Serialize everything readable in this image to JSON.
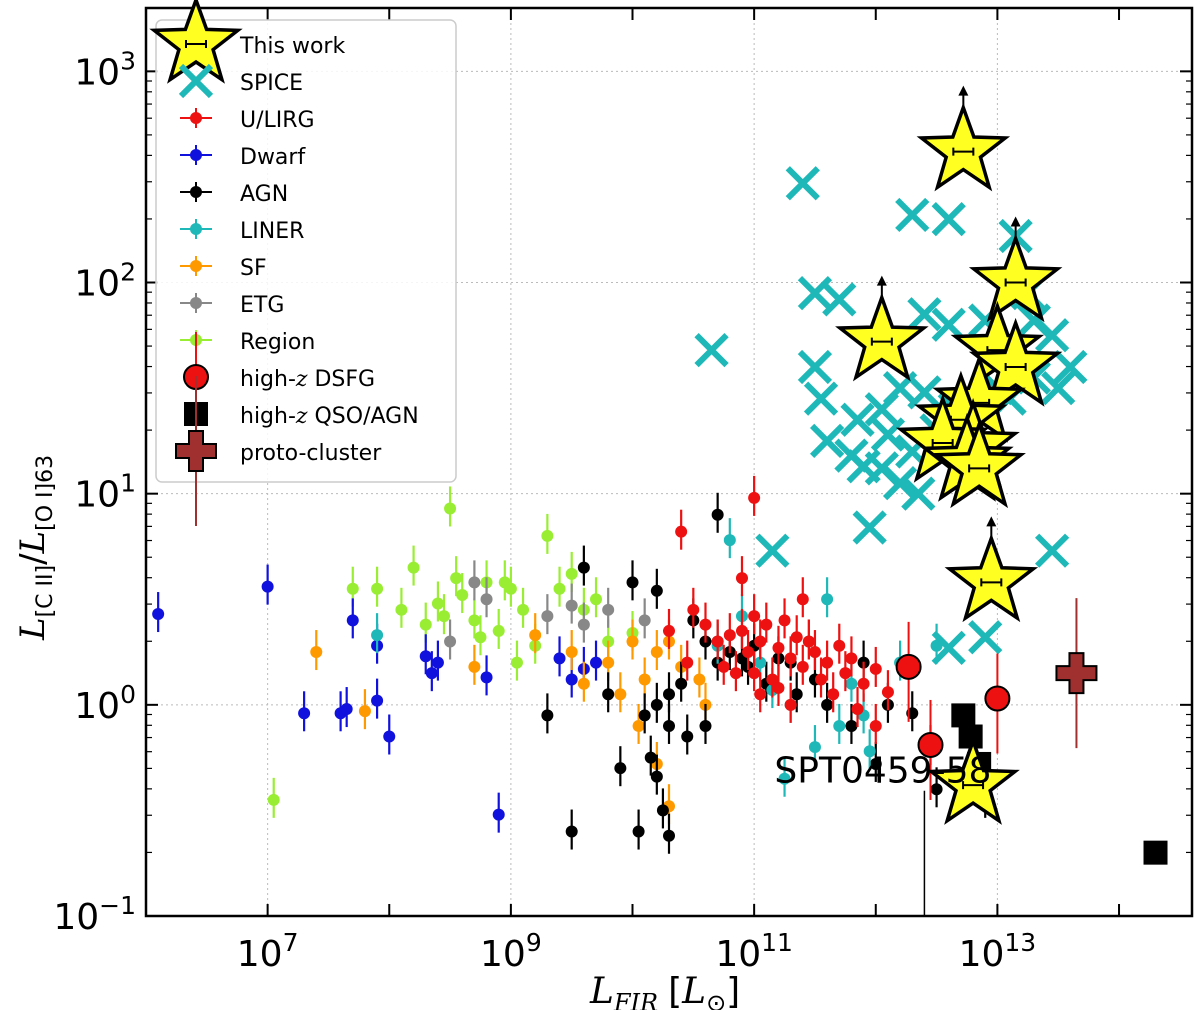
{
  "chart_data": {
    "type": "scatter",
    "title": "",
    "xlabel": "L_FIR [L_⊙]",
    "ylabel": "L_[C II]/L_[O I]63",
    "xlabel_parts": {
      "main": "L",
      "sub": "FIR",
      "unit_main": "L",
      "unit_sub": "⊙"
    },
    "ylabel_parts": {
      "num": "L",
      "num_sub": "[C II]",
      "den": "L",
      "den_sub": "[O I]63"
    },
    "x_scale": "log",
    "y_scale": "log",
    "xlim_log10": [
      6.0,
      14.6
    ],
    "ylim_log10": [
      -1.0,
      3.3
    ],
    "x_ticks": [
      {
        "log": 7,
        "base": "10",
        "exp": "7"
      },
      {
        "log": 9,
        "base": "10",
        "exp": "9"
      },
      {
        "log": 11,
        "base": "10",
        "exp": "11"
      },
      {
        "log": 13,
        "base": "10",
        "exp": "13"
      }
    ],
    "y_ticks": [
      {
        "log": -1,
        "base": "10",
        "exp": "−1"
      },
      {
        "log": 0,
        "base": "10",
        "exp": "0"
      },
      {
        "log": 1,
        "base": "10",
        "exp": "1"
      },
      {
        "log": 2,
        "base": "10",
        "exp": "2"
      },
      {
        "log": 3,
        "base": "10",
        "exp": "3"
      }
    ],
    "grid": true,
    "legend_position": "top-left",
    "annotation": {
      "text": "SPT0459-58",
      "x_log10": 12.4,
      "y_log10": -0.35,
      "line_bottom_log10": -1.0
    },
    "series": [
      {
        "name": "This work",
        "marker": "star",
        "color": "#ffff22",
        "edge": "#000000",
        "points": [
          {
            "x": 12.72,
            "y": 2.62,
            "lower_limit": true
          },
          {
            "x": 13.15,
            "y": 2.0,
            "lower_limit": true
          },
          {
            "x": 12.05,
            "y": 1.72,
            "lower_limit": true
          },
          {
            "x": 13.0,
            "y": 1.68
          },
          {
            "x": 13.15,
            "y": 1.6
          },
          {
            "x": 12.85,
            "y": 1.43
          },
          {
            "x": 12.7,
            "y": 1.35
          },
          {
            "x": 12.8,
            "y": 1.22
          },
          {
            "x": 12.55,
            "y": 1.24
          },
          {
            "x": 12.75,
            "y": 1.15
          },
          {
            "x": 12.85,
            "y": 1.12
          },
          {
            "x": 12.95,
            "y": 0.58,
            "lower_limit": true
          },
          {
            "x": 12.8,
            "y": -0.38
          }
        ]
      },
      {
        "name": "SPICE",
        "marker": "x",
        "color": "#1fb8b8",
        "points": [
          {
            "x": 11.4,
            "y": 2.47
          },
          {
            "x": 10.65,
            "y": 1.68
          },
          {
            "x": 11.5,
            "y": 1.95
          },
          {
            "x": 11.7,
            "y": 1.92
          },
          {
            "x": 11.5,
            "y": 1.6
          },
          {
            "x": 11.55,
            "y": 1.45
          },
          {
            "x": 11.6,
            "y": 1.25
          },
          {
            "x": 11.8,
            "y": 1.18
          },
          {
            "x": 11.9,
            "y": 1.13
          },
          {
            "x": 12.05,
            "y": 1.12
          },
          {
            "x": 11.95,
            "y": 0.84
          },
          {
            "x": 11.15,
            "y": 0.73
          },
          {
            "x": 12.3,
            "y": 2.32
          },
          {
            "x": 12.6,
            "y": 2.3
          },
          {
            "x": 12.4,
            "y": 1.85
          },
          {
            "x": 13.15,
            "y": 2.22
          },
          {
            "x": 13.25,
            "y": 1.95
          },
          {
            "x": 12.6,
            "y": 1.8
          },
          {
            "x": 12.9,
            "y": 1.82
          },
          {
            "x": 13.3,
            "y": 1.82
          },
          {
            "x": 13.45,
            "y": 1.75
          },
          {
            "x": 13.6,
            "y": 1.6
          },
          {
            "x": 13.5,
            "y": 1.5
          },
          {
            "x": 13.1,
            "y": 1.45
          },
          {
            "x": 12.2,
            "y": 1.5
          },
          {
            "x": 12.4,
            "y": 1.48
          },
          {
            "x": 12.65,
            "y": 1.4
          },
          {
            "x": 12.5,
            "y": 1.3
          },
          {
            "x": 12.3,
            "y": 1.2
          },
          {
            "x": 12.1,
            "y": 1.28
          },
          {
            "x": 12.2,
            "y": 1.05
          },
          {
            "x": 12.35,
            "y": 1.0
          },
          {
            "x": 13.45,
            "y": 0.73
          },
          {
            "x": 12.9,
            "y": 0.32
          },
          {
            "x": 12.6,
            "y": 0.27
          },
          {
            "x": 13.3,
            "y": 1.55
          },
          {
            "x": 12.05,
            "y": 1.4
          },
          {
            "x": 11.85,
            "y": 1.35
          },
          {
            "x": 13.0,
            "y": 1.5
          }
        ]
      },
      {
        "name": "U/LIRG",
        "marker": "dot",
        "color": "#ee1111",
        "points": [
          {
            "x": 10.7,
            "y": 0.3
          },
          {
            "x": 10.8,
            "y": 0.33
          },
          {
            "x": 10.9,
            "y": 0.35
          },
          {
            "x": 11.0,
            "y": 0.42
          },
          {
            "x": 11.05,
            "y": 0.3
          },
          {
            "x": 10.95,
            "y": 0.25
          },
          {
            "x": 11.1,
            "y": 0.38
          },
          {
            "x": 11.2,
            "y": 0.27
          },
          {
            "x": 11.25,
            "y": 0.4
          },
          {
            "x": 11.3,
            "y": 0.22
          },
          {
            "x": 11.35,
            "y": 0.32
          },
          {
            "x": 11.4,
            "y": 0.18
          },
          {
            "x": 11.45,
            "y": 0.3
          },
          {
            "x": 11.5,
            "y": 0.25
          },
          {
            "x": 11.6,
            "y": 0.2
          },
          {
            "x": 11.7,
            "y": 0.28
          },
          {
            "x": 11.75,
            "y": 0.15
          },
          {
            "x": 11.8,
            "y": 0.22
          },
          {
            "x": 11.9,
            "y": 0.1
          },
          {
            "x": 12.0,
            "y": 0.17
          },
          {
            "x": 10.75,
            "y": 0.18
          },
          {
            "x": 10.85,
            "y": 0.15
          },
          {
            "x": 11.0,
            "y": 0.15
          },
          {
            "x": 11.15,
            "y": 0.12
          },
          {
            "x": 11.05,
            "y": 0.05
          },
          {
            "x": 11.2,
            "y": 0.08
          },
          {
            "x": 11.3,
            "y": 0.0
          },
          {
            "x": 10.6,
            "y": 0.38
          },
          {
            "x": 10.5,
            "y": 0.45
          },
          {
            "x": 10.4,
            "y": 0.82
          },
          {
            "x": 11.0,
            "y": 0.98
          },
          {
            "x": 10.9,
            "y": 0.6
          },
          {
            "x": 11.4,
            "y": 0.5
          },
          {
            "x": 10.3,
            "y": 0.35
          },
          {
            "x": 10.45,
            "y": 0.2
          },
          {
            "x": 11.55,
            "y": 0.12
          },
          {
            "x": 11.65,
            "y": 0.05
          },
          {
            "x": 12.1,
            "y": 0.06
          },
          {
            "x": 12.0,
            "y": -0.1
          },
          {
            "x": 11.85,
            "y": -0.02
          }
        ]
      },
      {
        "name": "Dwarf",
        "marker": "dot",
        "color": "#1111dd",
        "points": [
          {
            "x": 6.1,
            "y": 0.43
          },
          {
            "x": 7.0,
            "y": 0.56
          },
          {
            "x": 7.3,
            "y": -0.04
          },
          {
            "x": 7.6,
            "y": -0.04
          },
          {
            "x": 7.65,
            "y": -0.02
          },
          {
            "x": 7.9,
            "y": 0.02
          },
          {
            "x": 8.0,
            "y": -0.15
          },
          {
            "x": 7.7,
            "y": 0.4
          },
          {
            "x": 7.9,
            "y": 0.28
          },
          {
            "x": 8.3,
            "y": 0.23
          },
          {
            "x": 8.35,
            "y": 0.15
          },
          {
            "x": 8.9,
            "y": -0.52
          },
          {
            "x": 8.8,
            "y": 0.13
          },
          {
            "x": 9.4,
            "y": 0.22
          },
          {
            "x": 9.6,
            "y": 0.17
          },
          {
            "x": 9.7,
            "y": 0.2
          },
          {
            "x": 9.5,
            "y": 0.12
          },
          {
            "x": 8.4,
            "y": 0.2
          }
        ]
      },
      {
        "name": "AGN",
        "marker": "dot",
        "color": "#000000",
        "points": [
          {
            "x": 9.6,
            "y": 0.65
          },
          {
            "x": 10.0,
            "y": 0.58
          },
          {
            "x": 10.2,
            "y": 0.54
          },
          {
            "x": 10.7,
            "y": 0.9
          },
          {
            "x": 10.5,
            "y": 0.4
          },
          {
            "x": 10.6,
            "y": 0.3
          },
          {
            "x": 10.8,
            "y": 0.25
          },
          {
            "x": 11.0,
            "y": 0.28
          },
          {
            "x": 11.2,
            "y": 0.22
          },
          {
            "x": 10.9,
            "y": 0.22
          },
          {
            "x": 10.95,
            "y": 0.18
          },
          {
            "x": 11.1,
            "y": 0.1
          },
          {
            "x": 10.4,
            "y": 0.1
          },
          {
            "x": 10.3,
            "y": 0.05
          },
          {
            "x": 10.2,
            "y": 0.0
          },
          {
            "x": 10.1,
            "y": -0.05
          },
          {
            "x": 10.3,
            "y": -0.1
          },
          {
            "x": 10.45,
            "y": -0.15
          },
          {
            "x": 10.6,
            "y": -0.1
          },
          {
            "x": 9.9,
            "y": -0.3
          },
          {
            "x": 10.2,
            "y": -0.34
          },
          {
            "x": 10.25,
            "y": -0.5
          },
          {
            "x": 10.3,
            "y": -0.62
          },
          {
            "x": 9.5,
            "y": -0.6
          },
          {
            "x": 10.05,
            "y": -0.6
          },
          {
            "x": 9.3,
            "y": -0.05
          },
          {
            "x": 10.15,
            "y": -0.25
          },
          {
            "x": 11.3,
            "y": 0.2
          },
          {
            "x": 11.35,
            "y": 0.05
          },
          {
            "x": 11.5,
            "y": 0.12
          },
          {
            "x": 11.6,
            "y": 0.0
          },
          {
            "x": 11.9,
            "y": 0.2
          },
          {
            "x": 12.3,
            "y": -0.04
          },
          {
            "x": 12.45,
            "y": -0.2
          },
          {
            "x": 12.5,
            "y": -0.4
          },
          {
            "x": 12.9,
            "y": -0.45
          },
          {
            "x": 12.1,
            "y": 0.0
          },
          {
            "x": 9.8,
            "y": 0.05
          },
          {
            "x": 10.7,
            "y": 0.2
          },
          {
            "x": 11.8,
            "y": -0.1
          },
          {
            "x": 12.0,
            "y": -0.28
          }
        ]
      },
      {
        "name": "LINER",
        "marker": "dot",
        "color": "#1fb8b8",
        "points": [
          {
            "x": 7.9,
            "y": 0.33
          },
          {
            "x": 10.8,
            "y": 0.78
          },
          {
            "x": 11.6,
            "y": 0.5
          },
          {
            "x": 11.45,
            "y": 0.3
          },
          {
            "x": 11.8,
            "y": 0.1
          },
          {
            "x": 11.9,
            "y": -0.05
          },
          {
            "x": 11.3,
            "y": 0.0
          },
          {
            "x": 11.05,
            "y": 0.2
          },
          {
            "x": 11.15,
            "y": 0.07
          },
          {
            "x": 10.7,
            "y": 0.28
          },
          {
            "x": 11.7,
            "y": -0.1
          },
          {
            "x": 11.95,
            "y": -0.22
          },
          {
            "x": 12.5,
            "y": 0.28
          },
          {
            "x": 11.5,
            "y": -0.2
          },
          {
            "x": 11.25,
            "y": -0.35
          },
          {
            "x": 10.9,
            "y": 0.42
          },
          {
            "x": 12.2,
            "y": 0.2
          }
        ]
      },
      {
        "name": "SF",
        "marker": "dot",
        "color": "#ff9900",
        "points": [
          {
            "x": 7.4,
            "y": 0.25
          },
          {
            "x": 7.8,
            "y": -0.03
          },
          {
            "x": 9.2,
            "y": 0.33
          },
          {
            "x": 9.6,
            "y": 0.1
          },
          {
            "x": 9.8,
            "y": 0.2
          },
          {
            "x": 10.0,
            "y": 0.3
          },
          {
            "x": 10.1,
            "y": 0.12
          },
          {
            "x": 10.2,
            "y": 0.25
          },
          {
            "x": 10.3,
            "y": 0.3
          },
          {
            "x": 10.4,
            "y": 0.18
          },
          {
            "x": 9.9,
            "y": 0.05
          },
          {
            "x": 10.55,
            "y": 0.12
          },
          {
            "x": 10.6,
            "y": 0.0
          },
          {
            "x": 10.05,
            "y": -0.1
          },
          {
            "x": 9.5,
            "y": 0.25
          },
          {
            "x": 10.3,
            "y": -0.48
          },
          {
            "x": 10.2,
            "y": -0.28
          },
          {
            "x": 8.7,
            "y": 0.18
          }
        ]
      },
      {
        "name": "ETG",
        "marker": "dot",
        "color": "#888888",
        "points": [
          {
            "x": 8.5,
            "y": 0.3
          },
          {
            "x": 8.7,
            "y": 0.58
          },
          {
            "x": 8.8,
            "y": 0.5
          },
          {
            "x": 9.3,
            "y": 0.42
          },
          {
            "x": 9.5,
            "y": 0.47
          },
          {
            "x": 9.6,
            "y": 0.38
          },
          {
            "x": 9.8,
            "y": 0.45
          },
          {
            "x": 10.1,
            "y": 0.4
          },
          {
            "x": 10.7,
            "y": 0.3
          }
        ]
      },
      {
        "name": "Region",
        "marker": "dot",
        "color": "#99ee33",
        "points": [
          {
            "x": 7.05,
            "y": -0.45
          },
          {
            "x": 7.9,
            "y": 0.55
          },
          {
            "x": 8.2,
            "y": 0.65
          },
          {
            "x": 8.5,
            "y": 0.93
          },
          {
            "x": 8.4,
            "y": 0.48
          },
          {
            "x": 8.6,
            "y": 0.52
          },
          {
            "x": 8.3,
            "y": 0.38
          },
          {
            "x": 8.7,
            "y": 0.4
          },
          {
            "x": 8.8,
            "y": 0.58
          },
          {
            "x": 9.0,
            "y": 0.55
          },
          {
            "x": 9.1,
            "y": 0.45
          },
          {
            "x": 9.3,
            "y": 0.8
          },
          {
            "x": 9.5,
            "y": 0.62
          },
          {
            "x": 9.7,
            "y": 0.5
          },
          {
            "x": 8.9,
            "y": 0.35
          },
          {
            "x": 9.2,
            "y": 0.28
          },
          {
            "x": 9.4,
            "y": 0.55
          },
          {
            "x": 9.6,
            "y": 0.45
          },
          {
            "x": 8.1,
            "y": 0.45
          },
          {
            "x": 8.55,
            "y": 0.6
          },
          {
            "x": 9.8,
            "y": 0.3
          },
          {
            "x": 9.05,
            "y": 0.2
          },
          {
            "x": 8.75,
            "y": 0.32
          },
          {
            "x": 8.45,
            "y": 0.42
          },
          {
            "x": 7.7,
            "y": 0.55
          },
          {
            "x": 8.95,
            "y": 0.58
          },
          {
            "x": 10.0,
            "y": 0.34
          }
        ]
      },
      {
        "name": "high-z DSFG",
        "marker": "circle",
        "color": "#ee1111",
        "edge": "#000000",
        "points": [
          {
            "x": 12.27,
            "y": 0.18
          },
          {
            "x": 12.45,
            "y": -0.19
          },
          {
            "x": 13.0,
            "y": 0.03
          }
        ]
      },
      {
        "name": "high-z QSO/AGN",
        "marker": "square",
        "color": "#000000",
        "points": [
          {
            "x": 12.72,
            "y": -0.05
          },
          {
            "x": 12.78,
            "y": -0.15
          },
          {
            "x": 12.85,
            "y": -0.28
          },
          {
            "x": 14.3,
            "y": -0.7
          }
        ]
      },
      {
        "name": "proto-cluster",
        "marker": "plus",
        "color": "#a03030",
        "edge": "#000000",
        "points": [
          {
            "x": 13.65,
            "y": 0.15
          }
        ]
      }
    ]
  }
}
